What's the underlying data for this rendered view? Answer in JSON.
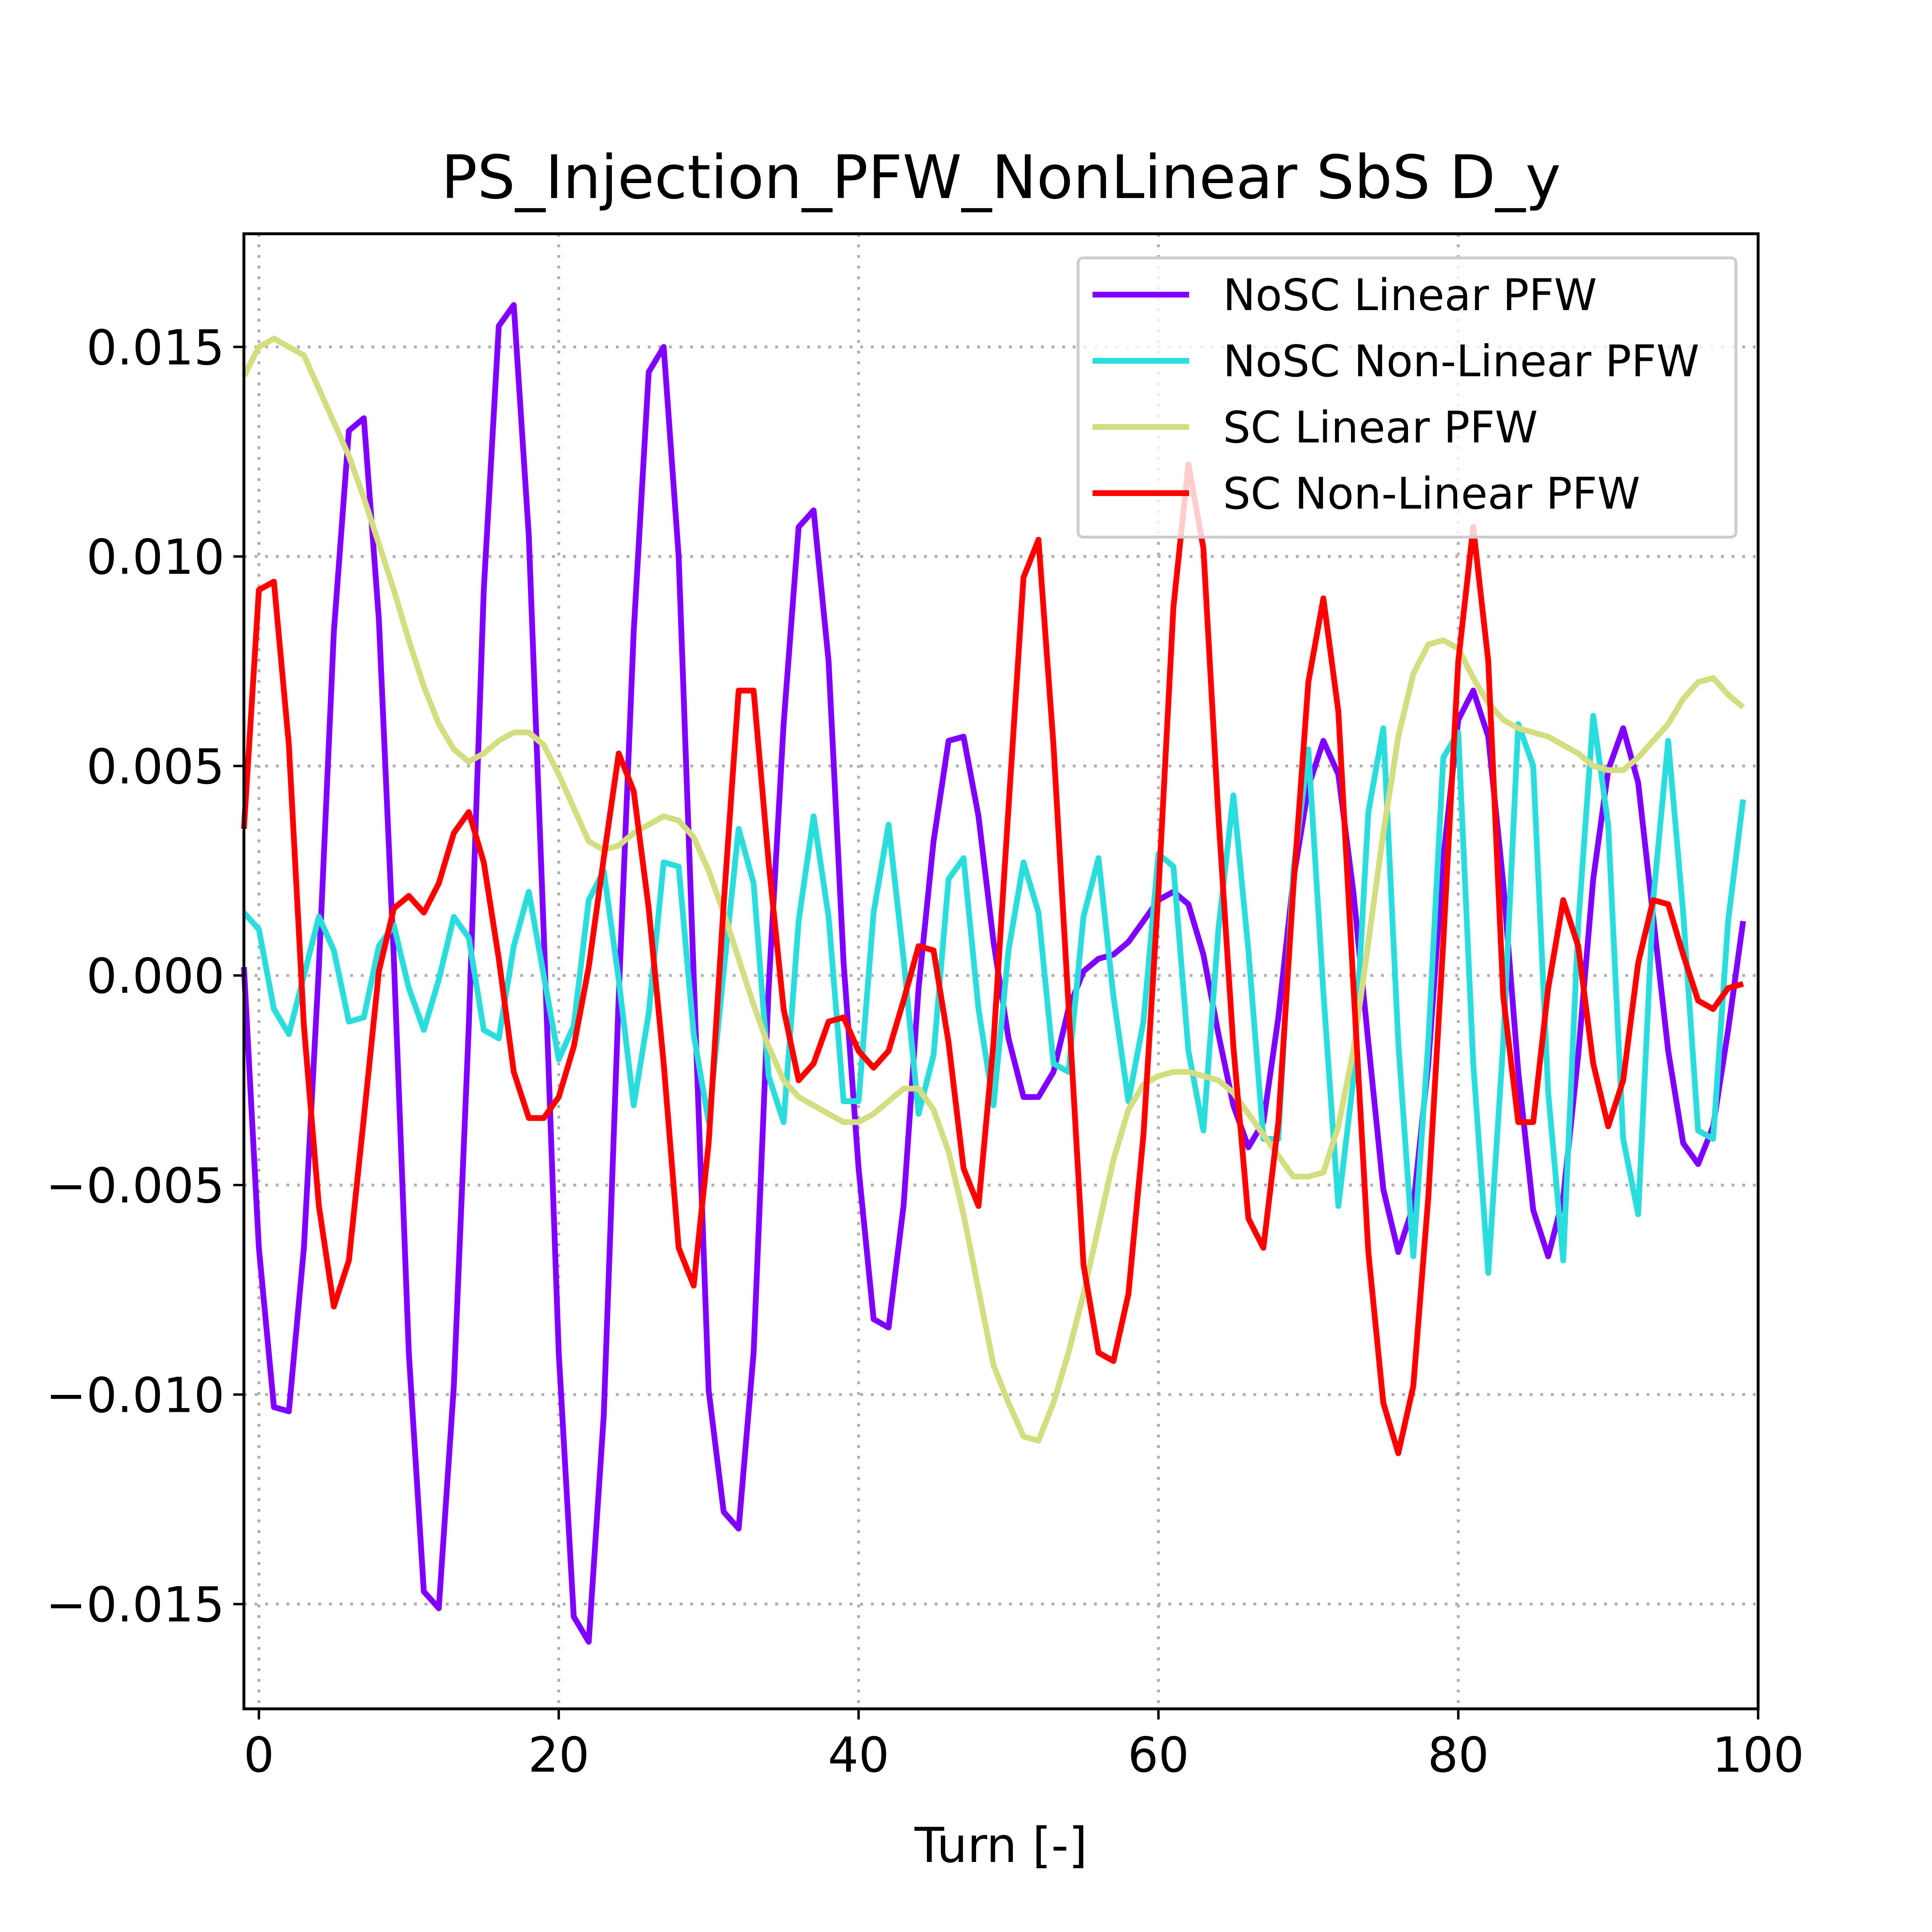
{
  "chart_data": {
    "type": "line",
    "title": "PS_Injection_PFW_NonLinear SbS D_y",
    "xlabel": "Turn [-]",
    "ylabel": "",
    "xlim": [
      -1,
      100
    ],
    "ylim": [
      -0.0175,
      0.0177
    ],
    "grid": true,
    "legend_position": "top-right",
    "x_ticks": [
      0,
      20,
      40,
      60,
      80,
      100
    ],
    "x_tick_labels": [
      "0",
      "20",
      "40",
      "60",
      "80",
      "100"
    ],
    "y_ticks": [
      0.015,
      0.01,
      0.005,
      0.0,
      -0.005,
      -0.01,
      -0.015
    ],
    "y_tick_labels": [
      "0.015",
      "0.010",
      "0.005",
      "0.000",
      "−0.005",
      "−0.010",
      "−0.015"
    ],
    "x": [
      -1,
      0,
      1,
      2,
      3,
      4,
      5,
      6,
      7,
      8,
      9,
      10,
      11,
      12,
      13,
      14,
      15,
      16,
      17,
      18,
      19,
      20,
      21,
      22,
      23,
      24,
      25,
      26,
      27,
      28,
      29,
      30,
      31,
      32,
      33,
      34,
      35,
      36,
      37,
      38,
      39,
      40,
      41,
      42,
      43,
      44,
      45,
      46,
      47,
      48,
      49,
      50,
      51,
      52,
      53,
      54,
      55,
      56,
      57,
      58,
      59,
      60,
      61,
      62,
      63,
      64,
      65,
      66,
      67,
      68,
      69,
      70,
      71,
      72,
      73,
      74,
      75,
      76,
      77,
      78,
      79,
      80,
      81,
      82,
      83,
      84,
      85,
      86,
      87,
      88,
      89,
      90,
      91,
      92,
      93,
      94,
      95,
      96,
      97,
      98,
      99
    ],
    "series": [
      {
        "name": "NoSC Linear PFW",
        "color": "#8000ff",
        "values": [
          0.0002,
          -0.0065,
          -0.0103,
          -0.0104,
          -0.0065,
          0.0002,
          0.0082,
          0.013,
          0.0133,
          0.0085,
          0.0004,
          -0.009,
          -0.0147,
          -0.0151,
          -0.0098,
          -0.0012,
          0.0092,
          0.0155,
          0.016,
          0.0105,
          0.001,
          -0.009,
          -0.0153,
          -0.0159,
          -0.0105,
          -0.0005,
          0.0082,
          0.0144,
          0.015,
          0.01,
          0.0,
          -0.0099,
          -0.0128,
          -0.0132,
          -0.009,
          -0.0003,
          0.006,
          0.0107,
          0.0111,
          0.0075,
          0.0003,
          -0.0046,
          -0.0082,
          -0.0084,
          -0.0055,
          -0.0003,
          0.0032,
          0.0056,
          0.0057,
          0.0038,
          0.0008,
          -0.0015,
          -0.0029,
          -0.0029,
          -0.0023,
          -0.0008,
          0.0001,
          0.0004,
          0.0005,
          0.0008,
          0.0013,
          0.0018,
          0.002,
          0.0017,
          0.0005,
          -0.0014,
          -0.0031,
          -0.0041,
          -0.0035,
          -0.001,
          0.0023,
          0.0045,
          0.0056,
          0.0048,
          0.002,
          -0.0016,
          -0.0051,
          -0.0066,
          -0.0055,
          -0.0021,
          0.0028,
          0.0061,
          0.0068,
          0.0057,
          0.0022,
          -0.0023,
          -0.0056,
          -0.0067,
          -0.0053,
          -0.0019,
          0.0023,
          0.0049,
          0.0059,
          0.0046,
          0.0014,
          -0.0018,
          -0.004,
          -0.0045,
          -0.0036,
          -0.0013,
          0.0013
        ]
      },
      {
        "name": "NoSC Non-Linear PFW",
        "color": "#2adddd",
        "values": [
          0.0015,
          0.0011,
          -0.0008,
          -0.0014,
          0.0,
          0.0014,
          0.0006,
          -0.0011,
          -0.001,
          0.0007,
          0.0012,
          -0.0003,
          -0.0013,
          -0.0001,
          0.0014,
          0.0009,
          -0.0013,
          -0.0015,
          0.0007,
          0.002,
          0.0,
          -0.002,
          -0.0012,
          0.0018,
          0.0025,
          -0.0001,
          -0.0031,
          -0.0009,
          0.0027,
          0.0026,
          -0.0014,
          -0.0035,
          0.0001,
          0.0035,
          0.0022,
          -0.0024,
          -0.0035,
          0.0013,
          0.0038,
          0.0014,
          -0.003,
          -0.003,
          0.0015,
          0.0036,
          0.0004,
          -0.0033,
          -0.0019,
          0.0023,
          0.0028,
          -0.0008,
          -0.0031,
          0.0006,
          0.0027,
          0.0015,
          -0.0021,
          -0.0023,
          0.0014,
          0.0028,
          -0.0005,
          -0.003,
          -0.0011,
          0.0029,
          0.0026,
          -0.0018,
          -0.0037,
          0.0011,
          0.0043,
          0.0006,
          -0.0039,
          -0.0039,
          0.0025,
          0.0054,
          -0.0004,
          -0.0055,
          -0.0025,
          0.0039,
          0.0059,
          -0.0016,
          -0.0067,
          -0.0016,
          0.0052,
          0.0058,
          -0.0021,
          -0.0071,
          -0.0016,
          0.006,
          0.005,
          -0.0028,
          -0.0068,
          0.0012,
          0.0062,
          0.0036,
          -0.0039,
          -0.0057,
          0.0018,
          0.0056,
          0.0015,
          -0.0037,
          -0.0039,
          0.0013,
          0.0042
        ]
      },
      {
        "name": "SC Linear PFW",
        "color": "#d4dd80",
        "values": [
          0.0143,
          0.015,
          0.0152,
          0.015,
          0.0148,
          0.014,
          0.0132,
          0.0124,
          0.0114,
          0.0103,
          0.0092,
          0.008,
          0.0069,
          0.006,
          0.0054,
          0.0051,
          0.0053,
          0.0056,
          0.0058,
          0.0058,
          0.0055,
          0.0048,
          0.004,
          0.0032,
          0.003,
          0.0031,
          0.0034,
          0.0036,
          0.0038,
          0.0037,
          0.0033,
          0.0025,
          0.0015,
          0.0004,
          -0.0007,
          -0.0017,
          -0.0025,
          -0.0029,
          -0.0031,
          -0.0033,
          -0.0035,
          -0.0035,
          -0.0033,
          -0.003,
          -0.0027,
          -0.0027,
          -0.0032,
          -0.0042,
          -0.0057,
          -0.0075,
          -0.0093,
          -0.0102,
          -0.011,
          -0.0111,
          -0.0102,
          -0.009,
          -0.0076,
          -0.006,
          -0.0044,
          -0.0032,
          -0.0026,
          -0.0024,
          -0.0023,
          -0.0023,
          -0.0024,
          -0.0025,
          -0.0028,
          -0.0033,
          -0.0038,
          -0.0043,
          -0.0048,
          -0.0048,
          -0.0047,
          -0.0036,
          -0.0018,
          0.0008,
          0.0034,
          0.0057,
          0.0072,
          0.0079,
          0.008,
          0.0078,
          0.0071,
          0.0065,
          0.0061,
          0.0059,
          0.0058,
          0.0057,
          0.0055,
          0.0053,
          0.005,
          0.0049,
          0.0049,
          0.0052,
          0.0056,
          0.006,
          0.0066,
          0.007,
          0.0071,
          0.0067,
          0.0064
        ]
      },
      {
        "name": "SC Non-Linear PFW",
        "color": "#ff0000",
        "values": [
          0.0035,
          0.0092,
          0.0094,
          0.0055,
          -0.0012,
          -0.0055,
          -0.0079,
          -0.0068,
          -0.0034,
          0.0001,
          0.0016,
          0.0019,
          0.0015,
          0.0022,
          0.0034,
          0.0039,
          0.0027,
          0.0004,
          -0.0023,
          -0.0034,
          -0.0034,
          -0.0029,
          -0.0017,
          0.0002,
          0.0028,
          0.0053,
          0.0044,
          0.0016,
          -0.0021,
          -0.0065,
          -0.0074,
          -0.004,
          0.0017,
          0.0068,
          0.0068,
          0.0027,
          -0.0008,
          -0.0025,
          -0.0021,
          -0.0011,
          -0.001,
          -0.0018,
          -0.0022,
          -0.0018,
          -0.0006,
          0.0007,
          0.0006,
          -0.0016,
          -0.0046,
          -0.0055,
          -0.0016,
          0.004,
          0.0095,
          0.0104,
          0.0055,
          -0.0007,
          -0.0069,
          -0.009,
          -0.0092,
          -0.0076,
          -0.0038,
          0.002,
          0.0088,
          0.0122,
          0.0102,
          0.0038,
          -0.0017,
          -0.0058,
          -0.0065,
          -0.0035,
          0.0021,
          0.007,
          0.009,
          0.0063,
          -0.0002,
          -0.0066,
          -0.0102,
          -0.0114,
          -0.0098,
          -0.0053,
          0.0008,
          0.0075,
          0.0107,
          0.0075,
          -0.0005,
          -0.0035,
          -0.0035,
          -0.0003,
          0.0018,
          0.0007,
          -0.0021,
          -0.0036,
          -0.0025,
          0.0003,
          0.0018,
          0.0017,
          0.0005,
          -0.0006,
          -0.0008,
          -0.0003,
          -0.0002
        ]
      }
    ]
  }
}
